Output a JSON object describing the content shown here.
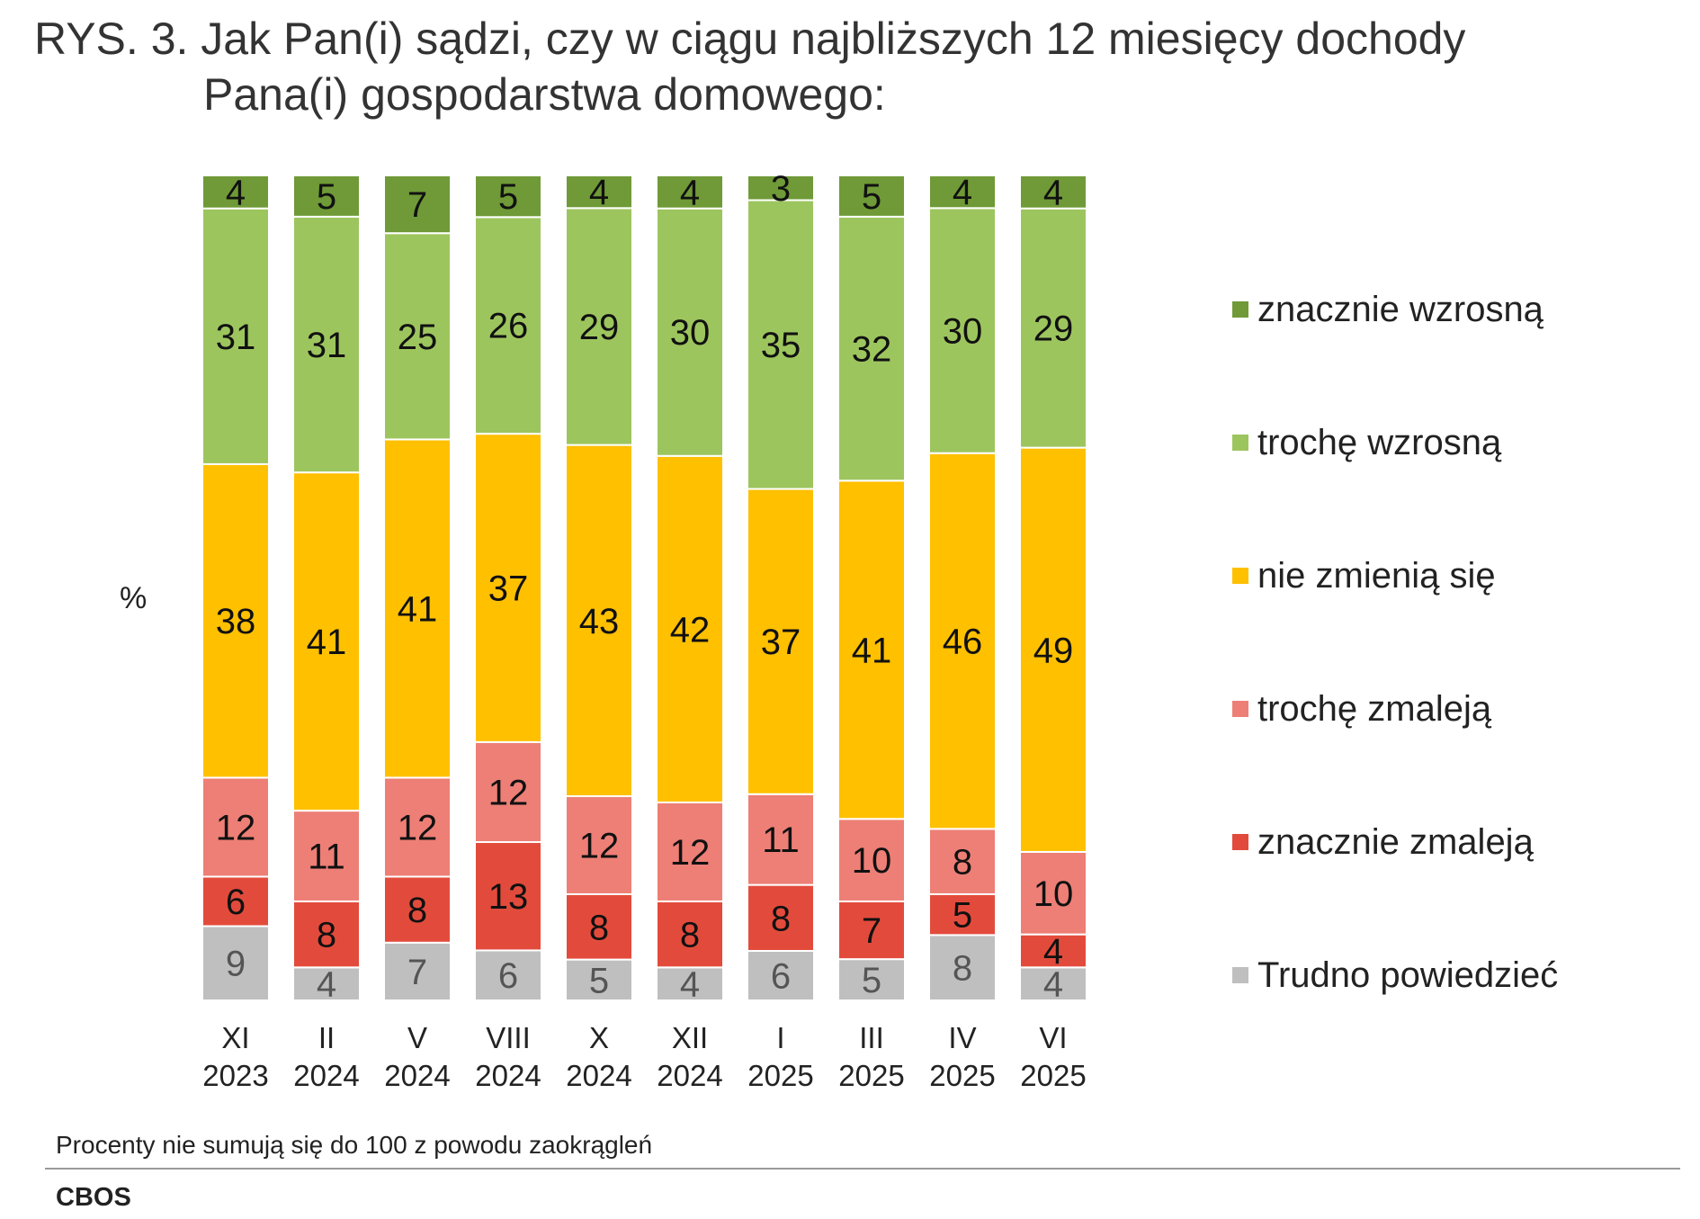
{
  "title": {
    "line1": "RYS. 3. Jak Pan(i) sądzi, czy w ciągu najbliższych 12 miesięcy dochody",
    "line2": "Pana(i) gospodarstwa domowego:"
  },
  "y_unit": "%",
  "note": "Procenty nie sumują się do 100 z powodu zaokrągleń",
  "source": "CBOS",
  "colors": {
    "znacznie_wzrosna": "#6f9a37",
    "troche_wzrosna": "#9dc55e",
    "nie_zmienia_sie": "#ffc000",
    "troche_zmaleja": "#ed7f76",
    "znacznie_zmaleja": "#e24b3c",
    "trudno": "#bfbfbf"
  },
  "chart_data": {
    "type": "bar",
    "stacked": true,
    "percent": true,
    "title": "RYS. 3. Jak Pan(i) sądzi, czy w ciągu najbliższych 12 miesięcy dochody Pana(i) gospodarstwa domowego:",
    "ylabel": "%",
    "ylim": [
      0,
      100
    ],
    "categories": [
      [
        "XI",
        "2023"
      ],
      [
        "II",
        "2024"
      ],
      [
        "V",
        "2024"
      ],
      [
        "VIII",
        "2024"
      ],
      [
        "X",
        "2024"
      ],
      [
        "XII",
        "2024"
      ],
      [
        "I",
        "2025"
      ],
      [
        "III",
        "2025"
      ],
      [
        "IV",
        "2025"
      ],
      [
        "VI",
        "2025"
      ]
    ],
    "series_bottom_to_top": [
      {
        "key": "trudno",
        "name": "Trudno powiedzieć",
        "color": "#bfbfbf",
        "label_color": "#555555",
        "values": [
          9,
          4,
          7,
          6,
          5,
          4,
          6,
          5,
          8,
          4
        ]
      },
      {
        "key": "znacznie_zmaleja",
        "name": "znacznie zmaleją",
        "color": "#e24b3c",
        "label_color": "#111111",
        "values": [
          6,
          8,
          8,
          13,
          8,
          8,
          8,
          7,
          5,
          4
        ]
      },
      {
        "key": "troche_zmaleja",
        "name": "trochę zmaleją",
        "color": "#ed7f76",
        "label_color": "#111111",
        "values": [
          12,
          11,
          12,
          12,
          12,
          12,
          11,
          10,
          8,
          10
        ]
      },
      {
        "key": "nie_zmienia_sie",
        "name": "nie zmienią się",
        "color": "#ffc000",
        "label_color": "#111111",
        "values": [
          38,
          41,
          41,
          37,
          43,
          42,
          37,
          41,
          46,
          49
        ]
      },
      {
        "key": "troche_wzrosna",
        "name": "trochę wzrosną",
        "color": "#9dc55e",
        "label_color": "#111111",
        "values": [
          31,
          31,
          25,
          26,
          29,
          30,
          35,
          32,
          30,
          29
        ]
      },
      {
        "key": "znacznie_wzrosna",
        "name": "znacznie wzrosną",
        "color": "#6f9a37",
        "label_color": "#111111",
        "values": [
          4,
          5,
          7,
          5,
          4,
          4,
          3,
          5,
          4,
          4
        ]
      }
    ],
    "legend_top_to_bottom": [
      "znacznie wzrosną",
      "trochę wzrosną",
      "nie zmienią się",
      "trochę zmaleją",
      "znacznie zmaleją",
      "Trudno powiedzieć"
    ],
    "legend_position": "right"
  }
}
